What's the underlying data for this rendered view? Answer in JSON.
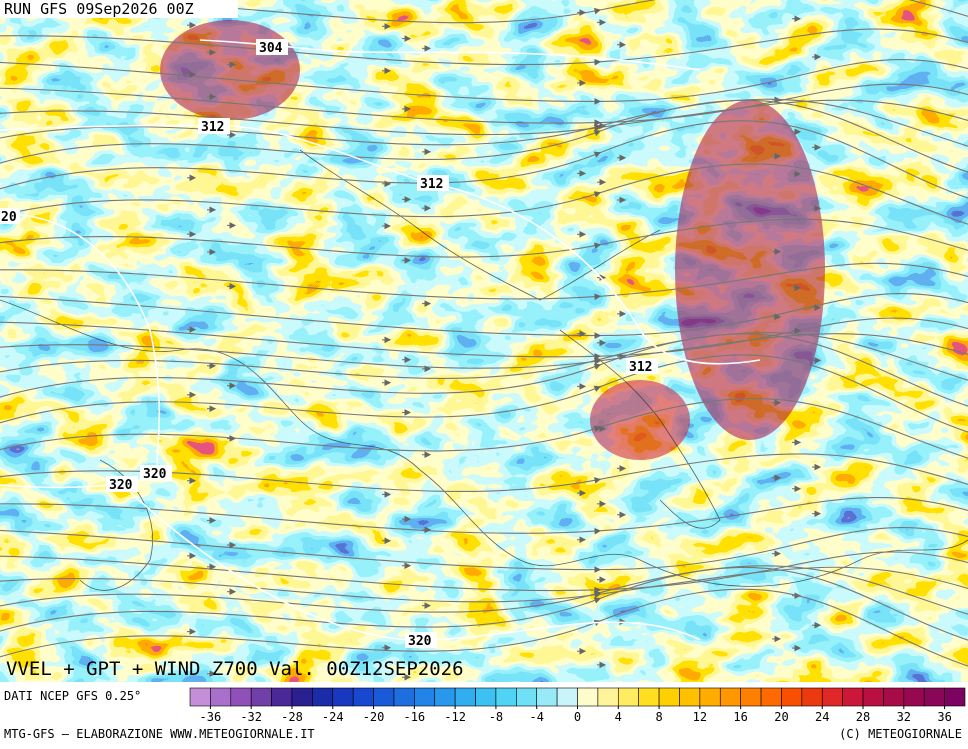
{
  "header": {
    "run": "RUN GFS 09Sep2026 00Z"
  },
  "contour_labels": [
    "304",
    "312",
    "312",
    "312",
    "320",
    "320",
    "320",
    "20"
  ],
  "map_title": "VVEL + GPT + WIND Z700 Val. 00Z12SEP2026",
  "source": "DATI NCEP GFS 0.25°",
  "colorbar": {
    "min": -38,
    "max": 38,
    "step": 2,
    "colors": [
      "#c48ed8",
      "#a870c8",
      "#9050b8",
      "#7040a8",
      "#4a2898",
      "#2a2090",
      "#1a2ca8",
      "#1838c0",
      "#1848d0",
      "#1a5ad8",
      "#1e6ee0",
      "#2284e8",
      "#2898ec",
      "#30aef0",
      "#3cc2f2",
      "#50d4f4",
      "#70e0f6",
      "#98eaf8",
      "#c8f4fa",
      "#fffccc",
      "#fff49a",
      "#ffec60",
      "#ffe020",
      "#ffd000",
      "#ffc000",
      "#ffac00",
      "#ff9800",
      "#ff8000",
      "#ff6a00",
      "#f85000",
      "#ec3a10",
      "#e02828",
      "#cc1838",
      "#b81040",
      "#a80c48",
      "#980850",
      "#8a0658",
      "#7c0460"
    ],
    "ticks": [
      -36,
      -32,
      -28,
      -24,
      -20,
      -16,
      -12,
      -8,
      -4,
      0,
      4,
      8,
      12,
      16,
      20,
      24,
      28,
      32,
      36
    ]
  },
  "footer": {
    "left": "MTG-GFS — ELABORAZIONE WWW.METEOGIORNALE.IT",
    "right": "(C) METEOGIORNALE"
  }
}
